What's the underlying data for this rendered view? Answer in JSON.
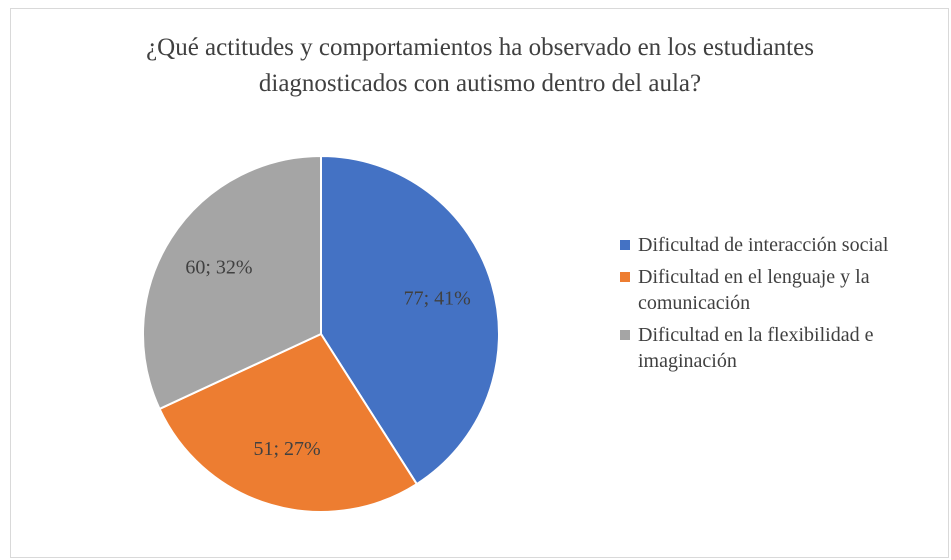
{
  "chart_data": {
    "type": "pie",
    "title": "¿Qué actitudes y comportamientos ha observado en los estudiantes diagnosticados con autismo dentro del aula?",
    "categories": [
      "Dificultad de interacción social",
      "Dificultad en el lenguaje y la comunicación",
      "Dificultad en la flexibilidad e imaginación"
    ],
    "values": [
      77,
      51,
      60
    ],
    "value_labels": [
      "77; 41%",
      "51; 27%",
      "60; 32%"
    ],
    "colors": [
      "#4472c4",
      "#ed7d31",
      "#a5a5a5"
    ],
    "legend": "right"
  }
}
